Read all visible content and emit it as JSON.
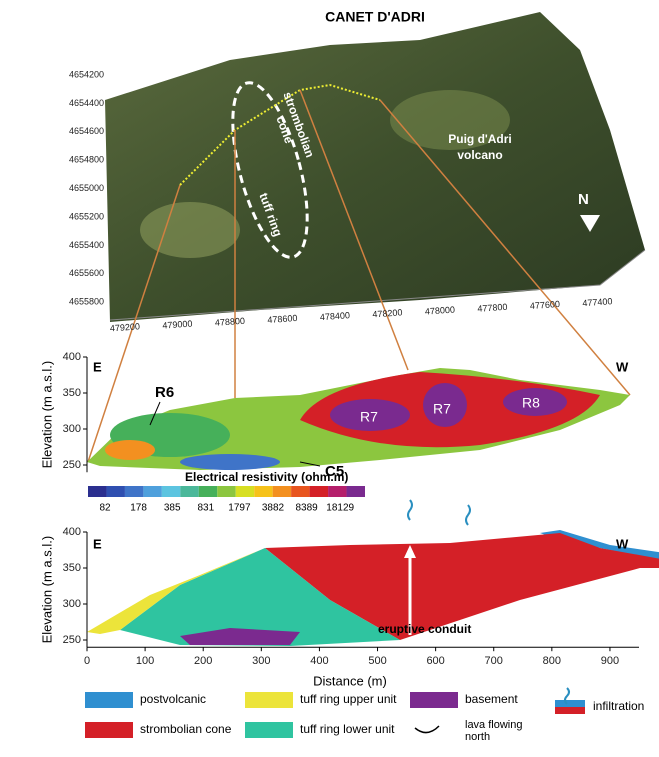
{
  "map": {
    "title": "CANET D'ADRI",
    "northings": [
      "4654200",
      "4654400",
      "4654600",
      "4654800",
      "4655000",
      "4655200",
      "4655400",
      "4655600",
      "4655800"
    ],
    "eastings": [
      "479200",
      "479000",
      "478800",
      "478600",
      "478400",
      "478200",
      "478000",
      "477800",
      "477600",
      "477400"
    ],
    "cone_label": [
      "strombolian",
      "cone"
    ],
    "ring_label": "tuff ring",
    "volcano_label": [
      "Puig d'Adri",
      "volcano"
    ],
    "north": "N"
  },
  "resistivity": {
    "ylabel": "Elevation (m a.s.l.)",
    "ylim": [
      240,
      400
    ],
    "yticks": [
      250,
      300,
      350,
      400
    ],
    "east": "E",
    "west": "W",
    "labels": [
      "R6",
      "R7",
      "R7",
      "R8",
      "C5"
    ],
    "scale_title": "Electrical resistivity (ohm.m)",
    "scale_colors": [
      "#2b2f8f",
      "#2f4fb0",
      "#3f74c8",
      "#4fa0dc",
      "#5cc4e0",
      "#4bb89a",
      "#46b05a",
      "#8cc63f",
      "#d7df23",
      "#f6c21a",
      "#f39020",
      "#e8551f",
      "#d42027",
      "#b51f6b",
      "#7a2a8f"
    ],
    "scale_ticks": [
      "82",
      "178",
      "385",
      "831",
      "1797",
      "3882",
      "8389",
      "18129"
    ]
  },
  "section": {
    "ylabel": "Elevation (m a.s.l.)",
    "xlabel": "Distance (m)",
    "ylim": [
      240,
      400
    ],
    "yticks": [
      250,
      300,
      350,
      400
    ],
    "xlim": [
      0,
      950
    ],
    "xticks": [
      0,
      100,
      200,
      300,
      400,
      500,
      600,
      700,
      800,
      900
    ],
    "east": "E",
    "west": "W",
    "conduit": "eruptive conduit"
  },
  "legend": [
    {
      "label": "postvolcanic",
      "color": "#2f8fd0"
    },
    {
      "label": "tuff ring upper unit",
      "color": "#ece43a"
    },
    {
      "label": "basement",
      "color": "#7b2a8f"
    },
    {
      "label": "infiltration"
    },
    {
      "label": "strombolian cone",
      "color": "#d42027"
    },
    {
      "label": "tuff ring lower unit",
      "color": "#2fc4a0"
    },
    {
      "label": [
        "lava flowing",
        "north"
      ]
    }
  ]
}
